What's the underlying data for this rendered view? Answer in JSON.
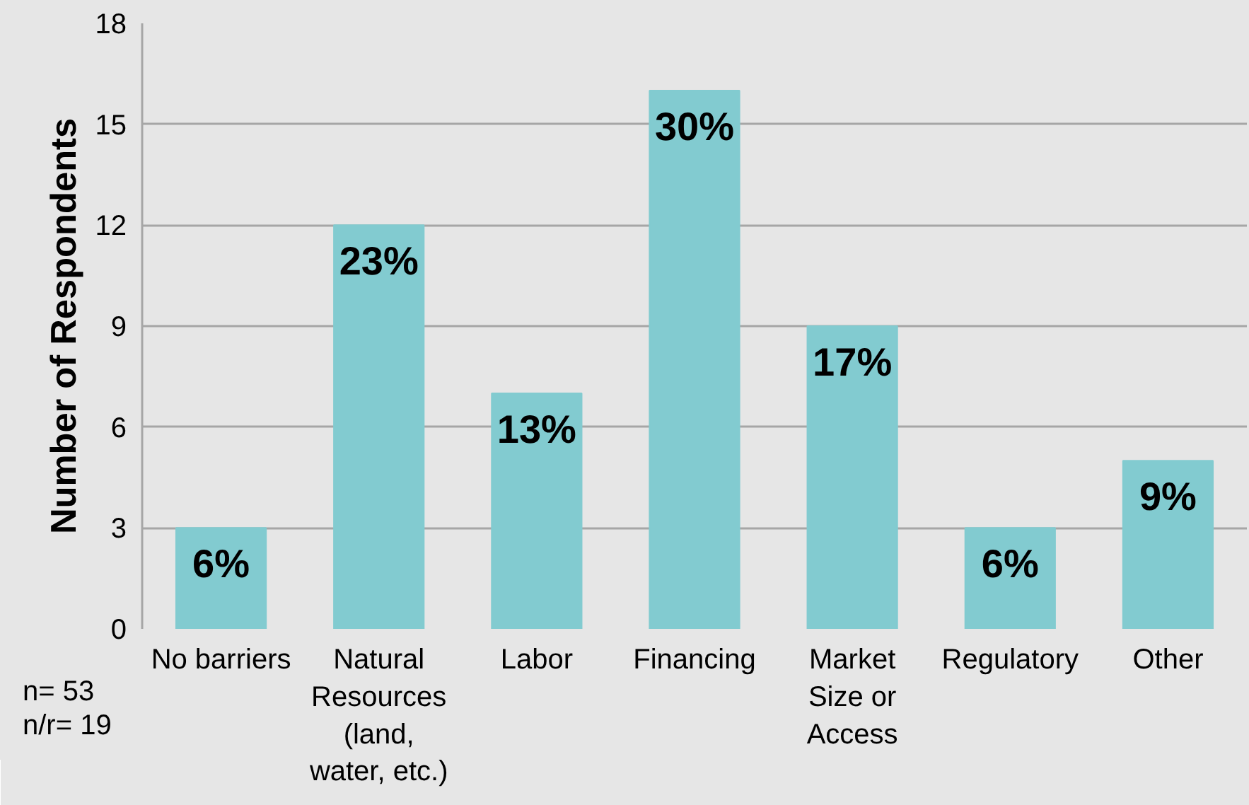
{
  "chart_data": {
    "type": "bar",
    "ylabel": "Number of Respondents",
    "categories": [
      "No barriers",
      "Natural\nResources\n(land,\nwater, etc.)",
      "Labor",
      "Financing",
      "Market\nSize or\nAccess",
      "Regulatory",
      "Other"
    ],
    "values": [
      3,
      12,
      7,
      16,
      9,
      3,
      5
    ],
    "color": "#82cbd0",
    "ylim": [
      0,
      18
    ],
    "yticks": [
      0,
      3,
      6,
      9,
      12,
      15,
      18
    ],
    "grid": "y",
    "annotations": [
      {
        "text": "6%",
        "x": "No barriers",
        "y": 3
      },
      {
        "text": "23%",
        "x": "Natural\nResources\n(land,\nwater, etc.)",
        "y": 12
      },
      {
        "text": "13%",
        "x": "Labor",
        "y": 7
      },
      {
        "text": "30%",
        "x": "Financing",
        "y": 16
      },
      {
        "text": "17%",
        "x": "Market\nSize or\nAccess",
        "y": 9
      },
      {
        "text": "6%",
        "x": "Regulatory",
        "y": 3
      },
      {
        "text": "9%",
        "x": "Other",
        "y": 5
      },
      "n= 53\nn/r= 19"
    ]
  }
}
